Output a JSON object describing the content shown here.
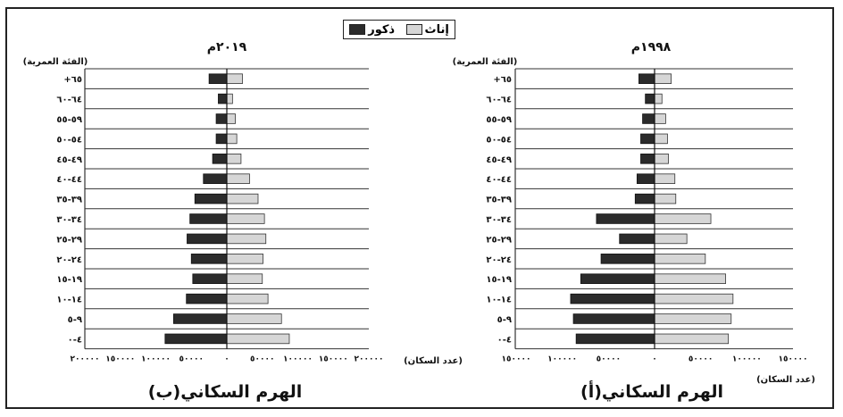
{
  "legend": {
    "female": "إناث",
    "male": "ذكور"
  },
  "colors": {
    "female": "#d6d6d6",
    "male": "#2b2b2b",
    "line": "#333333"
  },
  "chart_data": [
    {
      "type": "bar",
      "orientation": "population-pyramid",
      "title": "٢٠١٩م",
      "caption": "الهرم السكاني(ب)",
      "age_axis_label": "(الفئة العمرية)",
      "value_axis_label": "(عدد السكان)",
      "xlim": [
        -200000,
        200000
      ],
      "tick_labels": [
        "٢٠٠٠٠٠",
        "١٥٠٠٠٠",
        "١٠٠٠٠٠",
        "٥٠٠٠٠",
        "٠",
        "٥٠٠٠٠",
        "١٠٠٠٠٠",
        "١٥٠٠٠٠",
        "٢٠٠٠٠٠"
      ],
      "tick_values": [
        -200000,
        -150000,
        -100000,
        -50000,
        0,
        50000,
        100000,
        150000,
        200000
      ],
      "categories": [
        "+٦٥",
        "٦٤-٦٠",
        "٥٩-٥٥",
        "٥٤-٥٠",
        "٤٩-٤٥",
        "٤٤-٤٠",
        "٣٩-٣٥",
        "٣٤-٣٠",
        "٢٩-٢٥",
        "٢٤-٢٠",
        "١٩-١٥",
        "١٤-١٠",
        "٩-٥",
        "٤-٠"
      ],
      "series": [
        {
          "name": "ذكور",
          "values": [
            25000,
            12000,
            15000,
            15000,
            20000,
            33000,
            45000,
            52000,
            56000,
            50000,
            48000,
            57000,
            75000,
            87000
          ]
        },
        {
          "name": "إناث",
          "values": [
            22000,
            8000,
            12000,
            14000,
            20000,
            32000,
            44000,
            53000,
            55000,
            51000,
            50000,
            58000,
            77000,
            88000
          ]
        }
      ]
    },
    {
      "type": "bar",
      "orientation": "population-pyramid",
      "title": "١٩٩٨م",
      "caption": "الهرم السكاني(أ)",
      "age_axis_label": "(الفئة العمرية)",
      "value_axis_label": "(عدد السكان)",
      "xlim": [
        -150000,
        150000
      ],
      "tick_labels": [
        "١٥٠٠٠٠",
        "١٠٠٠٠٠",
        "٥٠٠٠٠",
        "٠",
        "٥٠٠٠٠",
        "١٠٠٠٠٠",
        "١٥٠٠٠٠"
      ],
      "tick_values": [
        -150000,
        -100000,
        -50000,
        0,
        50000,
        100000,
        150000
      ],
      "categories": [
        "+٦٥",
        "٦٤-٦٠",
        "٥٩-٥٥",
        "٥٤-٥٠",
        "٤٩-٤٥",
        "٤٤-٤٠",
        "٣٩-٣٥",
        "٣٤-٣٠",
        "٢٩-٢٥",
        "٢٤-٢٠",
        "١٩-١٥",
        "١٤-١٠",
        "٩-٥",
        "٤-٠"
      ],
      "series": [
        {
          "name": "ذكور",
          "values": [
            17000,
            10000,
            13000,
            15000,
            15000,
            19000,
            21000,
            63000,
            38000,
            58000,
            80000,
            91000,
            88000,
            85000
          ]
        },
        {
          "name": "إناث",
          "values": [
            18000,
            8000,
            12000,
            14000,
            15000,
            22000,
            23000,
            61000,
            35000,
            55000,
            77000,
            85000,
            83000,
            80000
          ]
        }
      ]
    }
  ]
}
